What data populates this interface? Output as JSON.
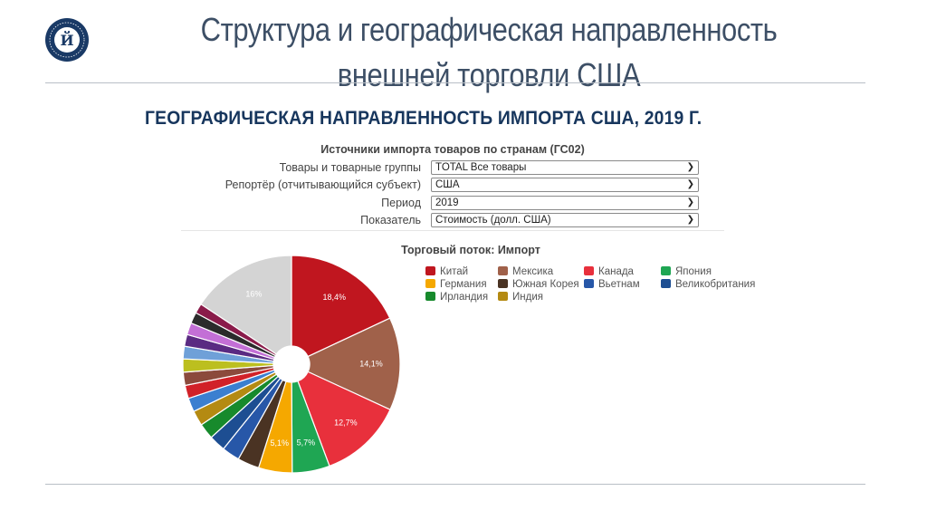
{
  "slide": {
    "title": "Структура и географическая направленность внешней торговли США",
    "section_heading": "ГЕОГРАФИЧЕСКАЯ НАПРАВЛЕННОСТЬ ИМПОРТА США, 2019 Г."
  },
  "panel": {
    "title": "Источники импорта товаров по странам (ГС02)",
    "fields": [
      {
        "label": "Товары и товарные группы",
        "value": "TOTAL Все товары"
      },
      {
        "label": "Репортёр (отчитывающийся субъект)",
        "value": "США"
      },
      {
        "label": "Период",
        "value": "2019"
      },
      {
        "label": "Показатель",
        "value": "Стоимость (долл. США)"
      }
    ]
  },
  "chart_data": {
    "type": "pie",
    "style": "donut",
    "title": "Торговый поток: Импорт",
    "legend_position": "top-right",
    "slices": [
      {
        "name": "Китай",
        "value": 18.4,
        "label": "18,4%",
        "color": "#c0161f"
      },
      {
        "name": "Мексика",
        "value": 14.1,
        "label": "14,1%",
        "color": "#a0614a"
      },
      {
        "name": "Канада",
        "value": 12.7,
        "label": "12,7%",
        "color": "#e8303c"
      },
      {
        "name": "Япония",
        "value": 5.7,
        "label": "5,7%",
        "color": "#1fa653"
      },
      {
        "name": "Германия",
        "value": 5.1,
        "label": "5,1%",
        "color": "#f5a800"
      },
      {
        "name": "Южная Корея",
        "value": 3.3,
        "label": "",
        "color": "#4a3323"
      },
      {
        "name": "Вьетнам",
        "value": 2.7,
        "label": "",
        "color": "#2757a8"
      },
      {
        "name": "Великобритания",
        "value": 2.5,
        "label": "",
        "color": "#1d4e92"
      },
      {
        "name": "Ирландия",
        "value": 2.4,
        "label": "",
        "color": "#178a2c"
      },
      {
        "name": "Индия",
        "value": 2.3,
        "label": "",
        "color": "#b48a12"
      },
      {
        "name": "",
        "value": 2.1,
        "label": "",
        "color": "#3b7fd0"
      },
      {
        "name": "",
        "value": 2.0,
        "label": "",
        "color": "#d12128"
      },
      {
        "name": "",
        "value": 2.0,
        "label": "",
        "color": "#8b4a3c"
      },
      {
        "name": "",
        "value": 2.0,
        "label": "",
        "color": "#bcbf1f"
      },
      {
        "name": "",
        "value": 1.9,
        "label": "",
        "color": "#6fa0d8"
      },
      {
        "name": "",
        "value": 1.8,
        "label": "",
        "color": "#5a2a82"
      },
      {
        "name": "",
        "value": 1.8,
        "label": "",
        "color": "#c36fd6"
      },
      {
        "name": "",
        "value": 1.7,
        "label": "",
        "color": "#2b2b2b"
      },
      {
        "name": "",
        "value": 1.5,
        "label": "",
        "color": "#8a1b4a"
      },
      {
        "name": "",
        "value": 16.0,
        "label": "16%",
        "color": "#d4d4d4"
      }
    ]
  }
}
